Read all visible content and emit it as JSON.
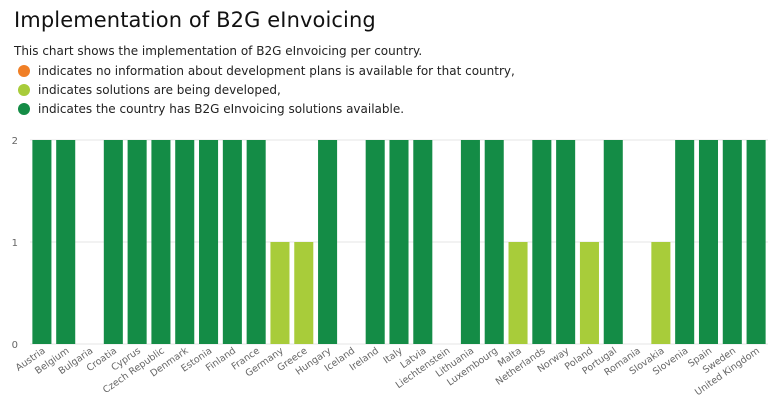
{
  "title": "Implementation of B2G eInvoicing",
  "subtitle": "This chart shows the implementation of B2G eInvoicing per country.",
  "legend": [
    {
      "color": "#f07f26",
      "text": "indicates no information about development plans is available for that country,"
    },
    {
      "color": "#a8cc3a",
      "text": "indicates solutions are being developed,"
    },
    {
      "color": "#148c46",
      "text": "indicates the country has B2G eInvoicing solutions available."
    }
  ],
  "colors": {
    "available": "#148c46",
    "developing": "#a8cc3a",
    "no_info": "#f07f26",
    "grid": "#e6e6e6",
    "axis_text": "#666666"
  },
  "chart_data": {
    "type": "bar",
    "title": "Implementation of B2G eInvoicing",
    "categories": [
      "Austria",
      "Belgium",
      "Bulgaria",
      "Croatia",
      "Cyprus",
      "Czech Republic",
      "Denmark",
      "Estonia",
      "Finland",
      "France",
      "Germany",
      "Greece",
      "Hungary",
      "Iceland",
      "Ireland",
      "Italy",
      "Latvia",
      "Liechtenstein",
      "Lithuania",
      "Luxembourg",
      "Malta",
      "Netherlands",
      "Norway",
      "Poland",
      "Portugal",
      "Romania",
      "Slovakia",
      "Slovenia",
      "Spain",
      "Sweden",
      "United Kingdom"
    ],
    "values": [
      2,
      2,
      0,
      2,
      2,
      2,
      2,
      2,
      2,
      2,
      1,
      1,
      2,
      0,
      2,
      2,
      2,
      0,
      2,
      2,
      1,
      2,
      2,
      1,
      2,
      0,
      1,
      2,
      2,
      2,
      2
    ],
    "yticks": [
      0,
      1,
      2
    ],
    "ylim": [
      0,
      2
    ],
    "xlabel": "",
    "ylabel": "",
    "grid": true
  }
}
